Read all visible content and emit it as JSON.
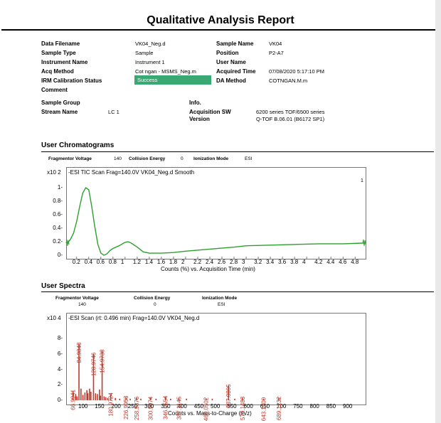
{
  "report": {
    "title": "Qualitative Analysis Report"
  },
  "info": {
    "data_filename_label": "Data Filename",
    "data_filename": "VK04_Neg.d",
    "sample_type_label": "Sample Type",
    "sample_type": "Sample",
    "instrument_name_label": "Instrument Name",
    "instrument_name": "Instrument 1",
    "acq_method_label": "Acq Method",
    "acq_method": "Cot ngan - MSMS_Neg.m",
    "irm_label": "IRM Calibration Status",
    "irm_status": "Success",
    "comment_label": "Comment",
    "sample_name_label": "Sample Name",
    "sample_name": "VK04",
    "position_label": "Position",
    "position": "P2-A7",
    "user_name_label": "User Name",
    "acquired_time_label": "Acquired Time",
    "acquired_time": "07/08/2020 5:17:10 PM",
    "da_method_label": "DA Method",
    "da_method": "COTNGAN.M.m",
    "sample_group_label": "Sample Group",
    "stream_name_label": "Stream Name",
    "stream_name": "LC 1",
    "info_label": "Info.",
    "acq_sw_label": "Acquisition SW",
    "acq_sw": "6200 series TOF/6500 series",
    "version_label": "Version",
    "version": "Q-TOF B.06.01 (B6172 SP1)",
    "status_color": "#3aa873"
  },
  "chromatogram": {
    "section_title": "User Chromatograms",
    "fragmentor_label": "Fragmentor Voltage",
    "fragmentor": "140",
    "collision_label": "Collision Energy",
    "collision": "0",
    "ionization_label": "Ionization Mode",
    "ionization": "ESI",
    "multiplier": "x10 2",
    "plot_label": "-ESI TIC Scan Frag=140.0V VK04_Neg.d  Smooth",
    "trace_number": "1",
    "y_ticks": [
      "1",
      "0.8",
      "0.6",
      "0.4",
      "0.2",
      "0"
    ],
    "x_ticks": [
      "0.2",
      "0.4",
      "0.6",
      "0.8",
      "1",
      "1.2",
      "1.4",
      "1.6",
      "1.8",
      "2",
      "2.2",
      "2.4",
      "2.6",
      "2.8",
      "3",
      "3.2",
      "3.4",
      "3.6",
      "3.8",
      "4",
      "4.2",
      "4.4",
      "4.6",
      "4.8"
    ],
    "x_axis_title": "Counts (%) vs. Acquisition Time (min)",
    "line_color": "#2ca02c"
  },
  "spectra": {
    "section_title": "User Spectra",
    "fragmentor_label": "Fragmentor Voltage",
    "fragmentor": "140",
    "collision_label": "Collision Energy",
    "collision": "0",
    "ionization_label": "Ionization Mode",
    "ionization": "ESI",
    "multiplier": "x10 4",
    "plot_label": "-ESI Scan (rt: 0.496 min) Frag=140.0V VK04_Neg.d",
    "y_ticks": [
      "8",
      "6",
      "4",
      "2",
      "0"
    ],
    "x_ticks": [
      "100",
      "150",
      "200",
      "250",
      "300",
      "350",
      "400",
      "450",
      "500",
      "550",
      "600",
      "650",
      "700",
      "750",
      "800",
      "850",
      "900"
    ],
    "x_axis_title": "Counts vs. Mass-to-Charge (m/z)",
    "peak_labels": [
      "66.9941",
      "84.9848",
      "128.9746",
      "154.9738",
      "180.9724",
      "226.9953",
      "258.9376",
      "300.9974",
      "346.0554",
      "387.1145",
      "469.0502",
      "537.0805",
      "579.1483",
      "643.1200",
      "689.1232"
    ],
    "bar_color": "#c0392b"
  },
  "chart_data": [
    {
      "type": "line",
      "title": "-ESI TIC Scan Frag=140.0V VK04_Neg.d  Smooth",
      "xlabel": "Counts (%) vs. Acquisition Time (min)",
      "ylabel": "",
      "xlim": [
        0.05,
        4.95
      ],
      "ylim": [
        -0.05,
        1.12
      ],
      "y_multiplier": "x10 2",
      "series": [
        {
          "x": [
            0.05,
            0.1,
            0.15,
            0.2,
            0.25,
            0.3,
            0.35,
            0.4,
            0.45,
            0.5,
            0.55,
            0.6,
            0.65,
            0.7,
            0.75,
            0.8,
            0.9,
            1.0,
            1.05,
            1.1,
            1.2,
            1.3,
            1.4,
            1.6,
            1.8,
            2.0,
            2.4,
            2.8,
            3.0,
            3.4,
            3.8,
            4.2,
            4.6,
            4.95
          ],
          "y": [
            0.18,
            0.24,
            0.33,
            0.5,
            0.72,
            0.92,
            1.0,
            0.97,
            0.72,
            0.42,
            0.16,
            0.03,
            0.0,
            0.02,
            0.07,
            0.1,
            0.14,
            0.19,
            0.2,
            0.18,
            0.12,
            0.05,
            0.03,
            0.03,
            0.04,
            0.06,
            0.09,
            0.12,
            0.14,
            0.15,
            0.16,
            0.17,
            0.17,
            0.18
          ]
        }
      ]
    },
    {
      "type": "bar",
      "title": "-ESI Scan (rt: 0.496 min) Frag=140.0V VK04_Neg.d",
      "xlabel": "Counts vs. Mass-to-Charge (m/z)",
      "ylabel": "",
      "xlim": [
        55,
        920
      ],
      "ylim": [
        0,
        10
      ],
      "y_multiplier": "x10 4",
      "x": [
        66.9941,
        75.0,
        79.0,
        84.9848,
        91.0,
        97.0,
        103.0,
        109.0,
        112.0,
        117.0,
        121.0,
        128.9746,
        135.0,
        141.0,
        147.0,
        150.0,
        154.9738,
        161.0,
        166.0,
        172.0,
        180.9724,
        195.0,
        208.0,
        226.9953,
        240.0,
        258.9376,
        272.0,
        300.9974,
        318.0,
        346.0554,
        362.0,
        387.1145,
        410.0,
        469.0502,
        488.0,
        537.0805,
        556.0,
        579.1483,
        643.12,
        689.1232
      ],
      "values": [
        1.2,
        0.8,
        0.5,
        7.3,
        1.5,
        0.7,
        1.0,
        1.3,
        0.9,
        1.5,
        1.1,
        6.0,
        0.9,
        0.8,
        1.4,
        0.6,
        6.4,
        0.5,
        0.4,
        0.3,
        0.8,
        0.3,
        0.2,
        0.4,
        0.2,
        0.3,
        0.2,
        0.3,
        0.2,
        0.4,
        0.2,
        0.3,
        0.2,
        0.2,
        0.2,
        1.9,
        0.2,
        0.3,
        0.2,
        0.3
      ]
    }
  ]
}
